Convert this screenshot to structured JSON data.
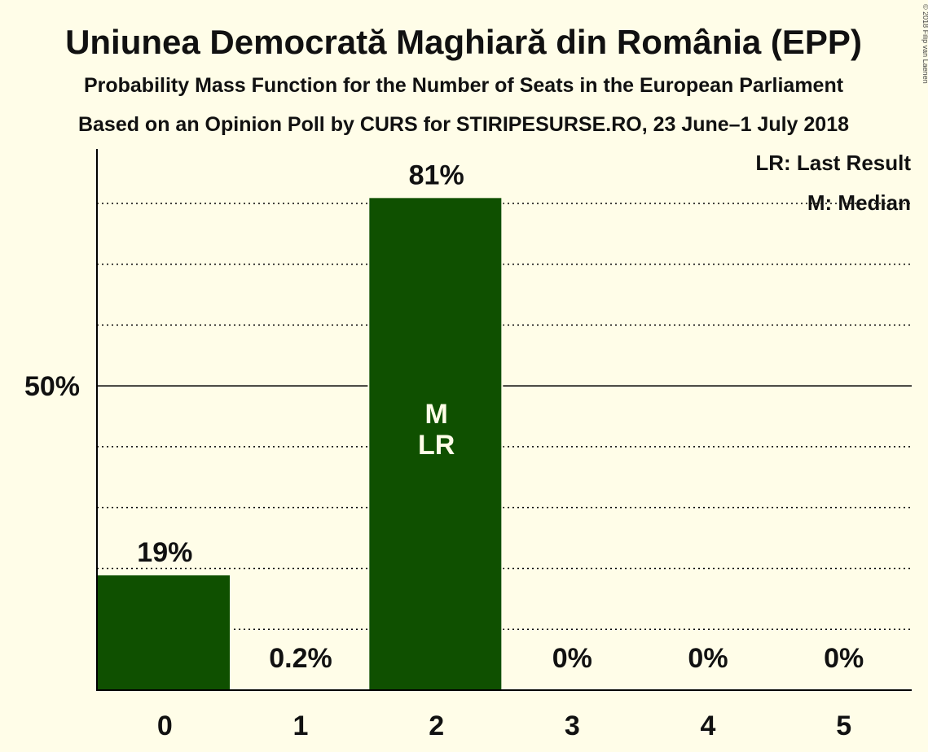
{
  "chart_data": {
    "type": "bar",
    "title": "Uniunea Democrată Maghiară din România (EPP)",
    "subtitle": "Probability Mass Function for the Number of Seats in the European Parliament",
    "subtitle2": "Based on an Opinion Poll by CURS for STIRIPESURSE.RO, 23 June–1 July 2018",
    "categories": [
      "0",
      "1",
      "2",
      "3",
      "4",
      "5"
    ],
    "values": [
      19,
      0.2,
      81,
      0,
      0,
      0
    ],
    "value_labels": [
      "19%",
      "0.2%",
      "81%",
      "0%",
      "0%",
      "0%"
    ],
    "ylim": [
      0,
      88
    ],
    "ytick_label": "50%",
    "ytick_value": 50,
    "gridlines": [
      10,
      20,
      30,
      40,
      60,
      70,
      80
    ],
    "median_index": 2,
    "last_result_index": 2,
    "median_marker": "M",
    "last_result_marker": "LR",
    "legend": [
      "LR: Last Result",
      "M: Median"
    ],
    "legend_position": "top-right",
    "bar_color": "#0f5000"
  },
  "copyright": "© 2018 Filip van Laenen"
}
